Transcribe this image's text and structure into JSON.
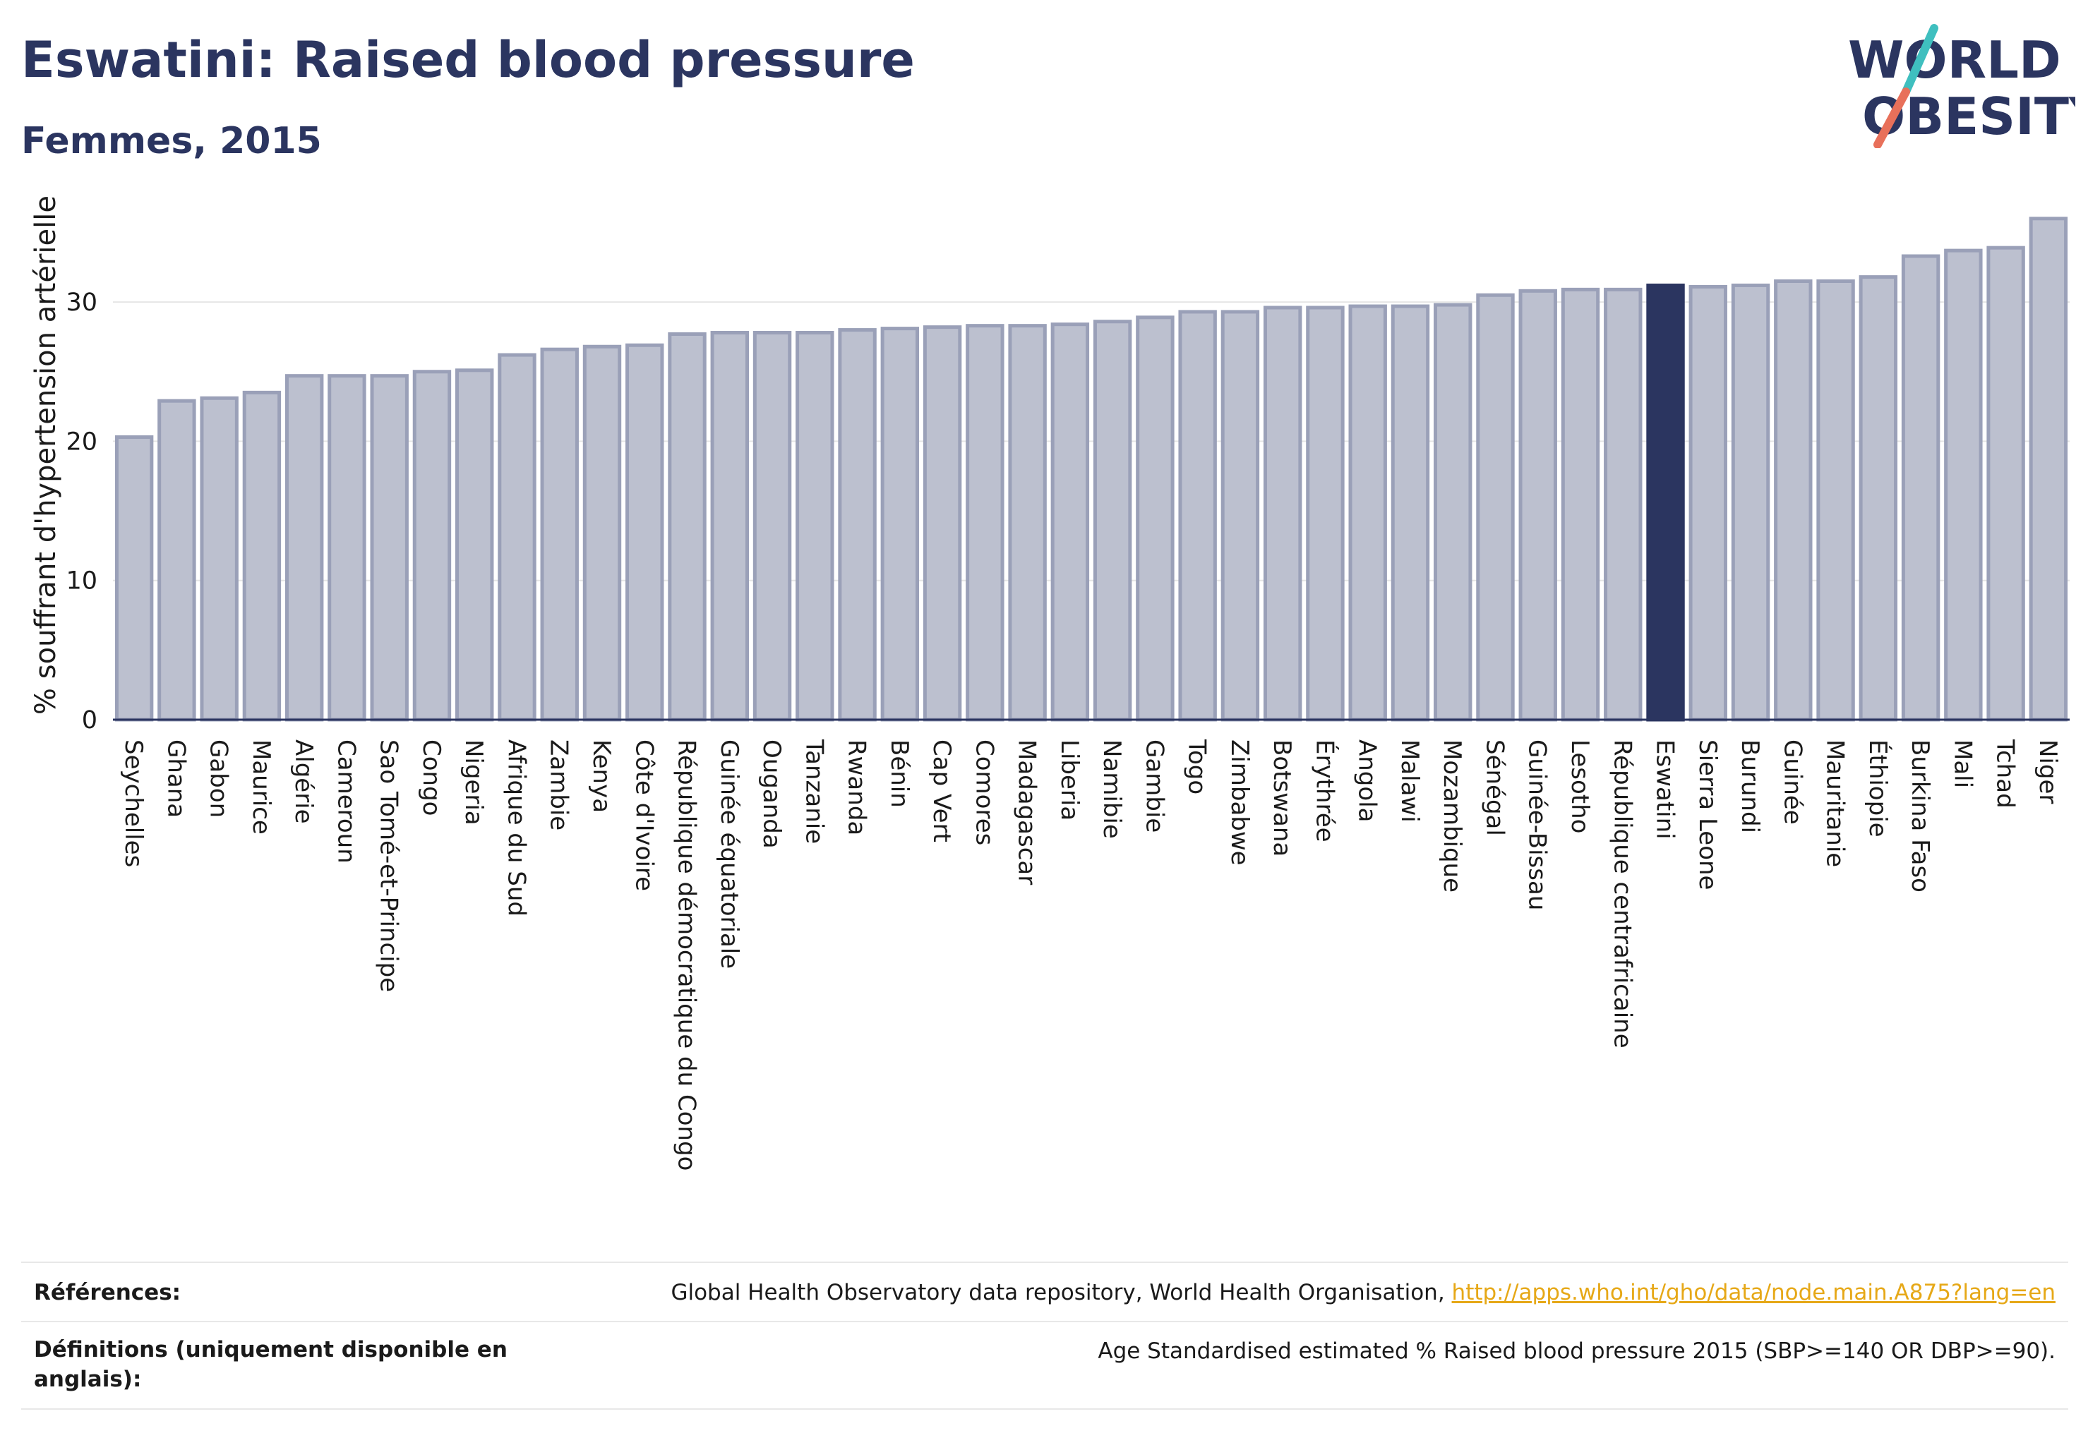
{
  "header": {
    "title": "Eswatini: Raised blood pressure",
    "subtitle": "Femmes, 2015",
    "logo_line1": "WORLD",
    "logo_line2": "OBESITY"
  },
  "colors": {
    "bar": "#bcc0cf",
    "bar_border": "#9aa0b8",
    "highlight": "#2b3560",
    "grid": "#e6e6e6",
    "logo_slash_top": "#3fbfbf",
    "logo_slash_bottom": "#e8705a",
    "link": "#e6a817"
  },
  "chart_data": {
    "type": "bar",
    "ylabel": "% souffrant d'hypertension artérielle",
    "ylim": [
      0,
      37
    ],
    "yticks": [
      0,
      10,
      20,
      30
    ],
    "grid": true,
    "highlight": "Eswatini",
    "categories": [
      "Seychelles",
      "Ghana",
      "Gabon",
      "Maurice",
      "Algérie",
      "Cameroun",
      "Sao Tomé-et-Principe",
      "Congo",
      "Nigeria",
      "Afrique du Sud",
      "Zambie",
      "Kenya",
      "Côte d'Ivoire",
      "République démocratique du Congo",
      "Guinée équatoriale",
      "Ouganda",
      "Tanzanie",
      "Rwanda",
      "Bénin",
      "Cap Vert",
      "Comores",
      "Madagascar",
      "Liberia",
      "Namibie",
      "Gambie",
      "Togo",
      "Zimbabwe",
      "Botswana",
      "Érythrée",
      "Angola",
      "Malawi",
      "Mozambique",
      "Sénégal",
      "Guinée-Bissau",
      "Lesotho",
      "République centrafricaine",
      "Eswatini",
      "Sierra Leone",
      "Burundi",
      "Guinée",
      "Mauritanie",
      "Éthiopie",
      "Burkina Faso",
      "Mali",
      "Tchad",
      "Niger"
    ],
    "values": [
      20.3,
      22.9,
      23.1,
      23.5,
      24.7,
      24.7,
      24.7,
      25.0,
      25.1,
      26.2,
      26.6,
      26.8,
      26.9,
      27.7,
      27.8,
      27.8,
      27.8,
      28.0,
      28.1,
      28.2,
      28.3,
      28.3,
      28.4,
      28.6,
      28.9,
      29.3,
      29.3,
      29.6,
      29.6,
      29.7,
      29.7,
      29.8,
      30.5,
      30.8,
      30.9,
      30.9,
      31.2,
      31.1,
      31.2,
      31.5,
      31.5,
      31.8,
      33.3,
      33.7,
      33.9,
      36.0
    ]
  },
  "footer": {
    "references_label": "Références:",
    "references_text": "Global Health Observatory data repository, World Health Organisation, ",
    "references_link": "http://apps.who.int/gho/data/node.main.A875?lang=en",
    "definitions_label": "Définitions (uniquement disponible en anglais):",
    "definitions_text": "Age Standardised estimated % Raised blood pressure 2015 (SBP>=140 OR DBP>=90)."
  }
}
